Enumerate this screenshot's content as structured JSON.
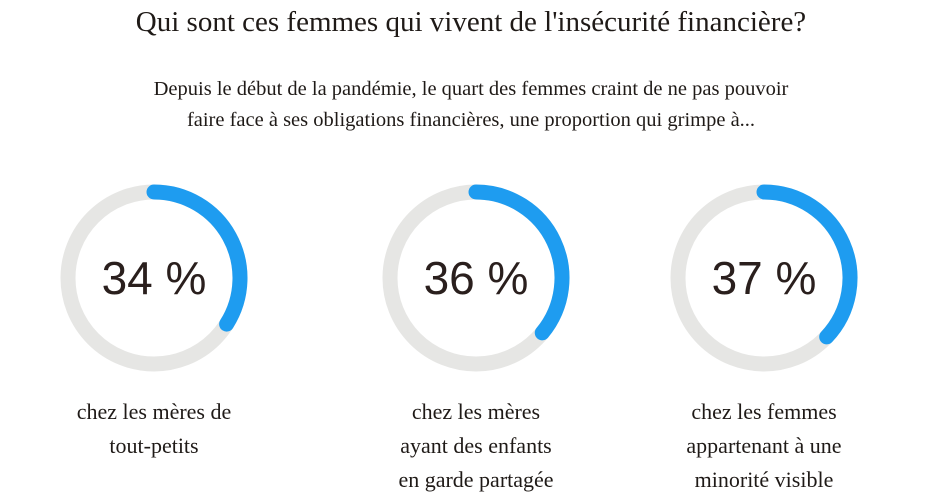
{
  "title": "Qui sont ces femmes qui vivent de l'insécurité financière?",
  "subtitle": {
    "line1": "Depuis le début de la pandémie, le quart des femmes craint de ne pas pouvoir",
    "line2": "faire face à ses obligations financières, une proportion qui grimpe à..."
  },
  "colors": {
    "accent": "#1e9cf0",
    "track": "#e6e6e4",
    "text": "#1f1a17"
  },
  "chart_data": {
    "type": "pie",
    "variant": "donut-progress",
    "unit": "%",
    "items": [
      {
        "value": 34,
        "display": "34 %",
        "label_lines": [
          "chez les mères de",
          "tout-petits"
        ]
      },
      {
        "value": 36,
        "display": "36 %",
        "label_lines": [
          "chez les mères",
          "ayant des enfants",
          "en garde partagée"
        ]
      },
      {
        "value": 37,
        "display": "37 %",
        "label_lines": [
          "chez les femmes",
          "appartenant à une",
          "minorité visible"
        ]
      }
    ]
  }
}
